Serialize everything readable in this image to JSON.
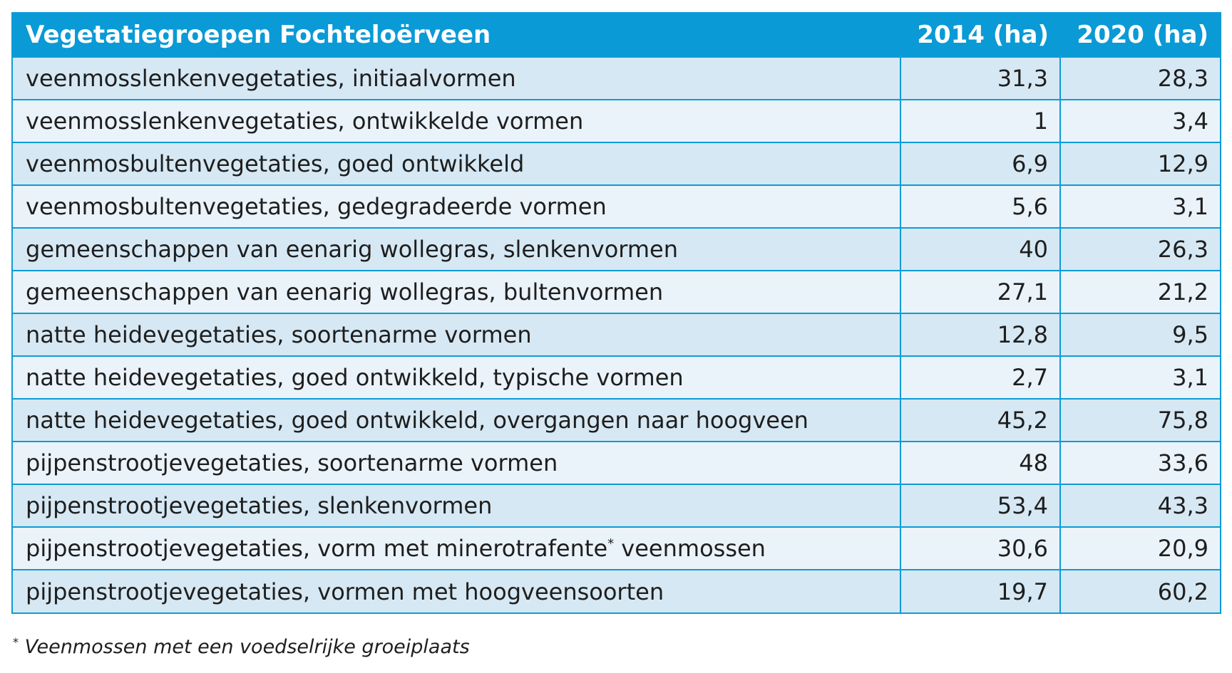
{
  "chart_data": {
    "type": "table",
    "columns": [
      "Vegetatiegroepen Fochteloërveen",
      "2014 (ha)",
      "2020 (ha)"
    ],
    "rows": [
      {
        "name": "veenmosslenkenvegetaties, initiaalvormen",
        "note": "",
        "suffix": "",
        "v2014": "31,3",
        "v2020": "28,3"
      },
      {
        "name": "veenmosslenkenvegetaties, ontwikkelde vormen",
        "note": "",
        "suffix": "",
        "v2014": "1",
        "v2020": "3,4"
      },
      {
        "name": "veenmosbultenvegetaties, goed ontwikkeld",
        "note": "",
        "suffix": "",
        "v2014": "6,9",
        "v2020": "12,9"
      },
      {
        "name": "veenmosbultenvegetaties, gedegradeerde vormen",
        "note": "",
        "suffix": "",
        "v2014": "5,6",
        "v2020": "3,1"
      },
      {
        "name": "gemeenschappen van eenarig wollegras, slenkenvormen",
        "note": "",
        "suffix": "",
        "v2014": "40",
        "v2020": "26,3"
      },
      {
        "name": "gemeenschappen van eenarig wollegras, bultenvormen",
        "note": "",
        "suffix": "",
        "v2014": "27,1",
        "v2020": "21,2"
      },
      {
        "name": "natte heidevegetaties, soortenarme vormen",
        "note": "",
        "suffix": "",
        "v2014": "12,8",
        "v2020": "9,5"
      },
      {
        "name": "natte heidevegetaties, goed ontwikkeld, typische vormen",
        "note": "",
        "suffix": "",
        "v2014": "2,7",
        "v2020": "3,1"
      },
      {
        "name": "natte heidevegetaties, goed ontwikkeld, overgangen naar hoogveen",
        "note": "",
        "suffix": "",
        "v2014": "45,2",
        "v2020": "75,8"
      },
      {
        "name": "pijpenstrootjevegetaties, soortenarme vormen",
        "note": "",
        "suffix": "",
        "v2014": "48",
        "v2020": "33,6"
      },
      {
        "name": "pijpenstrootjevegetaties, slenkenvormen",
        "note": "",
        "suffix": "",
        "v2014": "53,4",
        "v2020": "43,3"
      },
      {
        "name": "pijpenstrootjevegetaties, vorm met minerotrafente",
        "note": "*",
        "suffix": " veenmossen",
        "v2014": "30,6",
        "v2020": "20,9"
      },
      {
        "name": "pijpenstrootjevegetaties, vormen met hoogveensoorten",
        "note": "",
        "suffix": "",
        "v2014": "19,7",
        "v2020": "60,2"
      }
    ],
    "footnote": {
      "mark": "*",
      "text": " Veenmossen met een voedselrijke groeiplaats"
    }
  },
  "colors": {
    "header_bg": "#0a9ad6",
    "border": "#0d9bd6",
    "row_a": "#d6e8f3",
    "row_b": "#eaf3fa",
    "text": "#1e1e1e"
  }
}
